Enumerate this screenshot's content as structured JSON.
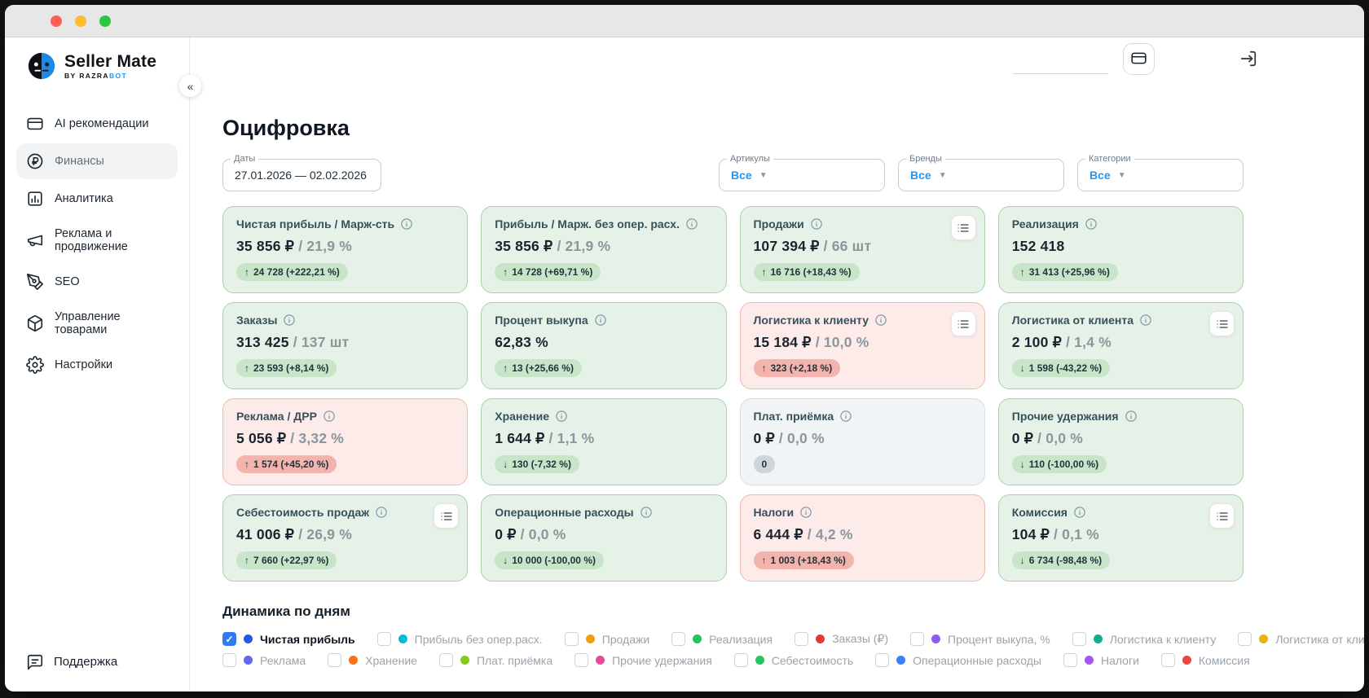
{
  "window": {
    "traffic_lights": {
      "close": "#ff5f57",
      "minimize": "#febc2e",
      "zoom": "#28c840"
    }
  },
  "sidebar": {
    "logo": {
      "title": "Seller Mate",
      "subtitle_prefix": "BY RAZRA",
      "subtitle_accent": "BOT"
    },
    "items": [
      {
        "label": "AI рекомендации",
        "icon": "card-icon",
        "active": false
      },
      {
        "label": "Финансы",
        "icon": "ruble-icon",
        "active": true
      },
      {
        "label": "Аналитика",
        "icon": "chart-icon",
        "active": false
      },
      {
        "label": "Реклама и продвижение",
        "icon": "megaphone-icon",
        "active": false
      },
      {
        "label": "SEO",
        "icon": "pen-icon",
        "active": false
      },
      {
        "label": "Управление товарами",
        "icon": "box-icon",
        "active": false
      },
      {
        "label": "Настройки",
        "icon": "gear-icon",
        "active": false
      }
    ],
    "support": {
      "label": "Поддержка",
      "icon": "chat-icon"
    },
    "collapse_glyph": "«"
  },
  "header": {
    "card_button_icon": "bank-card-icon",
    "logout_icon": "logout-icon"
  },
  "page": {
    "title": "Оцифровка",
    "filters": [
      {
        "label": "Даты",
        "value": "27.01.2026 — 02.02.2026",
        "type": "date"
      },
      {
        "label": "Артикулы",
        "value": "Все",
        "type": "select"
      },
      {
        "label": "Бренды",
        "value": "Все",
        "type": "select"
      },
      {
        "label": "Категории",
        "value": "Все",
        "type": "select"
      }
    ],
    "cards": [
      {
        "title": "Чистая прибыль / Марж-сть",
        "value": "35 856 ₽",
        "secondary": "/ 21,9 %",
        "tone": "green",
        "badge": {
          "dir": "up",
          "text": "24 728 (+222,21 %)",
          "tone": "green"
        },
        "has_menu": false
      },
      {
        "title": "Прибыль / Марж. без опер. расх.",
        "value": "35 856 ₽",
        "secondary": "/ 21,9 %",
        "tone": "green",
        "badge": {
          "dir": "up",
          "text": "14 728 (+69,71 %)",
          "tone": "green"
        },
        "has_menu": false
      },
      {
        "title": "Продажи",
        "value": "107 394 ₽",
        "secondary": "/ 66 шт",
        "tone": "green",
        "badge": {
          "dir": "up",
          "text": "16 716 (+18,43 %)",
          "tone": "green"
        },
        "has_menu": true
      },
      {
        "title": "Реализация",
        "value": "152 418",
        "secondary": "",
        "tone": "green",
        "badge": {
          "dir": "up",
          "text": "31 413 (+25,96 %)",
          "tone": "green"
        },
        "has_menu": false
      },
      {
        "title": "Заказы",
        "value": "313 425",
        "secondary": "/ 137 шт",
        "tone": "green",
        "badge": {
          "dir": "up",
          "text": "23 593 (+8,14 %)",
          "tone": "green"
        },
        "has_menu": false
      },
      {
        "title": "Процент выкупа",
        "value": "62,83 %",
        "secondary": "",
        "tone": "green",
        "badge": {
          "dir": "up",
          "text": "13 (+25,66 %)",
          "tone": "green"
        },
        "has_menu": false
      },
      {
        "title": "Логистика к клиенту",
        "value": "15 184 ₽",
        "secondary": "/ 10,0 %",
        "tone": "red",
        "badge": {
          "dir": "up",
          "text": "323 (+2,18 %)",
          "tone": "red"
        },
        "has_menu": true
      },
      {
        "title": "Логистика от клиента",
        "value": "2 100 ₽",
        "secondary": "/ 1,4 %",
        "tone": "green",
        "badge": {
          "dir": "down",
          "text": "1 598 (-43,22 %)",
          "tone": "green"
        },
        "has_menu": true
      },
      {
        "title": "Реклама / ДРР",
        "value": "5 056 ₽",
        "secondary": "/ 3,32 %",
        "tone": "red",
        "badge": {
          "dir": "up",
          "text": "1 574 (+45,20 %)",
          "tone": "red"
        },
        "has_menu": false
      },
      {
        "title": "Хранение",
        "value": "1 644 ₽",
        "secondary": "/ 1,1 %",
        "tone": "green",
        "badge": {
          "dir": "down",
          "text": "130 (-7,32 %)",
          "tone": "green"
        },
        "has_menu": false
      },
      {
        "title": "Плат. приёмка",
        "value": "0 ₽",
        "secondary": "/ 0,0 %",
        "tone": "gray",
        "badge": {
          "dir": "none",
          "text": "0",
          "tone": "gray"
        },
        "has_menu": false
      },
      {
        "title": "Прочие удержания",
        "value": "0 ₽",
        "secondary": "/ 0,0 %",
        "tone": "green",
        "badge": {
          "dir": "down",
          "text": "110 (-100,00 %)",
          "tone": "green"
        },
        "has_menu": false
      },
      {
        "title": "Себестоимость продаж",
        "value": "41 006 ₽",
        "secondary": "/ 26,9 %",
        "tone": "green",
        "badge": {
          "dir": "up",
          "text": "7 660 (+22,97 %)",
          "tone": "green"
        },
        "has_menu": true
      },
      {
        "title": "Операционные расходы",
        "value": "0 ₽",
        "secondary": "/ 0,0 %",
        "tone": "green",
        "badge": {
          "dir": "down",
          "text": "10 000 (-100,00 %)",
          "tone": "green"
        },
        "has_menu": false
      },
      {
        "title": "Налоги",
        "value": "6 444 ₽",
        "secondary": "/ 4,2 %",
        "tone": "red",
        "badge": {
          "dir": "up",
          "text": "1 003 (+18,43 %)",
          "tone": "red"
        },
        "has_menu": false
      },
      {
        "title": "Комиссия",
        "value": "104 ₽",
        "secondary": "/ 0,1 %",
        "tone": "green",
        "badge": {
          "dir": "down",
          "text": "6 734 (-98,48 %)",
          "tone": "green"
        },
        "has_menu": true
      }
    ],
    "dynamics": {
      "title": "Динамика по дням",
      "legend_rows": [
        [
          {
            "label": "Чистая прибыль",
            "color": "#2458e6",
            "checked": true
          },
          {
            "label": "Прибыль без опер.расх.",
            "color": "#00bcd4",
            "checked": false
          },
          {
            "label": "Продажи",
            "color": "#f59e0b",
            "checked": false
          },
          {
            "label": "Реализация",
            "color": "#22c55e",
            "checked": false
          },
          {
            "label": "Заказы (₽)",
            "color": "#e53935",
            "checked": false
          },
          {
            "label": "Процент выкупа, %",
            "color": "#8b5cf6",
            "checked": false
          },
          {
            "label": "Логистика к клиенту",
            "color": "#0faf8e",
            "checked": false
          },
          {
            "label": "Логистика от клиента",
            "color": "#eab308",
            "checked": false
          }
        ],
        [
          {
            "label": "Реклама",
            "color": "#6366f1",
            "checked": false
          },
          {
            "label": "Хранение",
            "color": "#f97316",
            "checked": false
          },
          {
            "label": "Плат. приёмка",
            "color": "#84cc16",
            "checked": false
          },
          {
            "label": "Прочие удержания",
            "color": "#ec4899",
            "checked": false
          },
          {
            "label": "Себестоимость",
            "color": "#22c55e",
            "checked": false
          },
          {
            "label": "Операционные расходы",
            "color": "#3b82f6",
            "checked": false
          },
          {
            "label": "Налоги",
            "color": "#a855f7",
            "checked": false
          },
          {
            "label": "Комиссия",
            "color": "#ef4444",
            "checked": false
          }
        ]
      ]
    }
  },
  "colors": {
    "accent_blue": "#2196f3",
    "card_green_bg": "#e6f2e7",
    "card_green_border": "#a8d2ab",
    "card_red_bg": "#fcebe9",
    "card_red_border": "#f1b7b1",
    "card_gray_bg": "#f0f4f6",
    "card_gray_border": "#d5dde1",
    "badge_green": "#c8e5ca",
    "badge_red": "#f2b4ad",
    "badge_gray": "#ccd5da"
  }
}
